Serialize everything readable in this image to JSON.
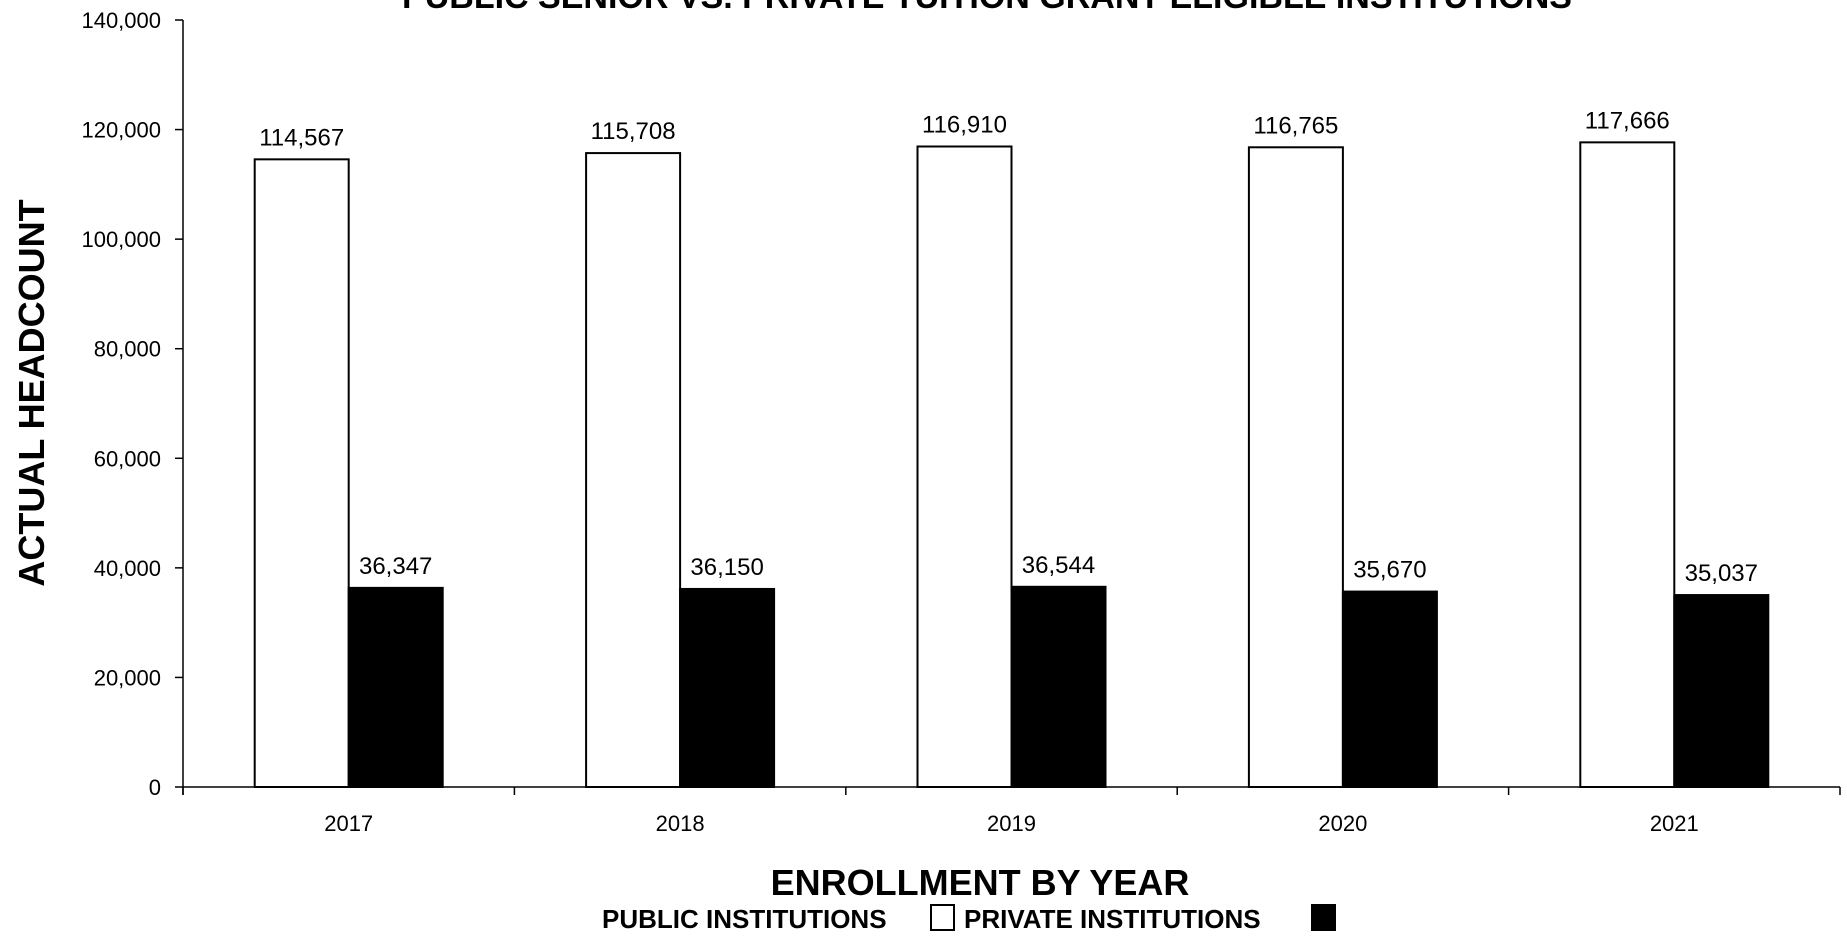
{
  "chart_data": {
    "type": "bar",
    "title": "PUBLIC SENIOR VS. PRIVATE TUITION GRANT ELIGIBLE INSTITUTIONS",
    "xlabel": "ENROLLMENT BY YEAR",
    "ylabel": "ACTUAL HEADCOUNT",
    "categories": [
      "2017",
      "2018",
      "2019",
      "2020",
      "2021"
    ],
    "series": [
      {
        "name": "PUBLIC INSTITUTIONS",
        "values": [
          114567,
          115708,
          116910,
          116765,
          117666
        ],
        "labels": [
          "114,567",
          "115,708",
          "116,910",
          "116,765",
          "117,666"
        ],
        "color": "#ffffff"
      },
      {
        "name": "PRIVATE INSTITUTIONS",
        "values": [
          36347,
          36150,
          36544,
          35670,
          35037
        ],
        "labels": [
          "36,347",
          "36,150",
          "36,544",
          "35,670",
          "35,037"
        ],
        "color": "#000000"
      }
    ],
    "ylim": [
      0,
      140000
    ],
    "yticks": [
      0,
      20000,
      40000,
      60000,
      80000,
      100000,
      120000,
      140000
    ],
    "ytick_labels": [
      "0",
      "20,000",
      "40,000",
      "60,000",
      "80,000",
      "100,000",
      "120,000",
      "140,000"
    ],
    "grid": false,
    "legend_position": "bottom"
  }
}
